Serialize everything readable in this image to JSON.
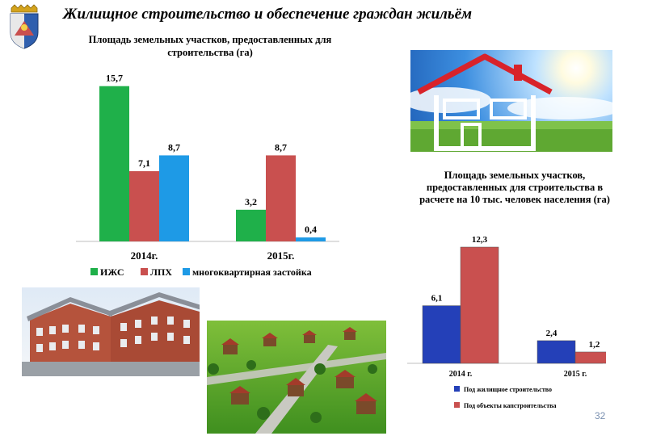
{
  "slide": {
    "title": "Жилищное строительство и обеспечение граждан жильём",
    "page_number": "32"
  },
  "icons": {
    "crest": "coat-of-arms-icon",
    "house": "house-outline-icon"
  },
  "colors": {
    "green": "#1fb04a",
    "red": "#c9504f",
    "blue": "#1e9ae6",
    "dark_blue": "#2440b8"
  },
  "chart_data": [
    {
      "type": "bar",
      "title": "Площадь земельных участков, предоставленных для строительства (га)",
      "categories": [
        "2014г.",
        "2015г."
      ],
      "series": [
        {
          "name": "ИЖС",
          "values": [
            15.7,
            3.2
          ],
          "labels": [
            "15,7",
            "3,2"
          ],
          "color": "#1fb04a"
        },
        {
          "name": "ЛПХ",
          "values": [
            7.1,
            8.7
          ],
          "labels": [
            "7,1",
            "8,7"
          ],
          "color": "#c9504f"
        },
        {
          "name": "многоквартирная застойка",
          "values": [
            8.7,
            0.4
          ],
          "labels": [
            "8,7",
            "0,4"
          ],
          "color": "#1e9ae6"
        }
      ],
      "ylim": [
        0,
        16
      ],
      "legend": "bottom"
    },
    {
      "type": "bar",
      "title": "Площадь земельных участков, предоставленных для строительства в расчете на 10 тыс. человек населения (га)",
      "categories": [
        "2014 г.",
        "2015 г."
      ],
      "series": [
        {
          "name": "Под жилищное строительство",
          "values": [
            6.1,
            2.4
          ],
          "labels": [
            "6,1",
            "2,4"
          ],
          "color": "#2440b8"
        },
        {
          "name": "Под объекты капстроительства",
          "values": [
            12.3,
            1.2
          ],
          "labels": [
            "12,3",
            "1,2"
          ],
          "color": "#c9504f"
        }
      ],
      "ylim": [
        0,
        12.3
      ],
      "legend": "bottom"
    }
  ]
}
